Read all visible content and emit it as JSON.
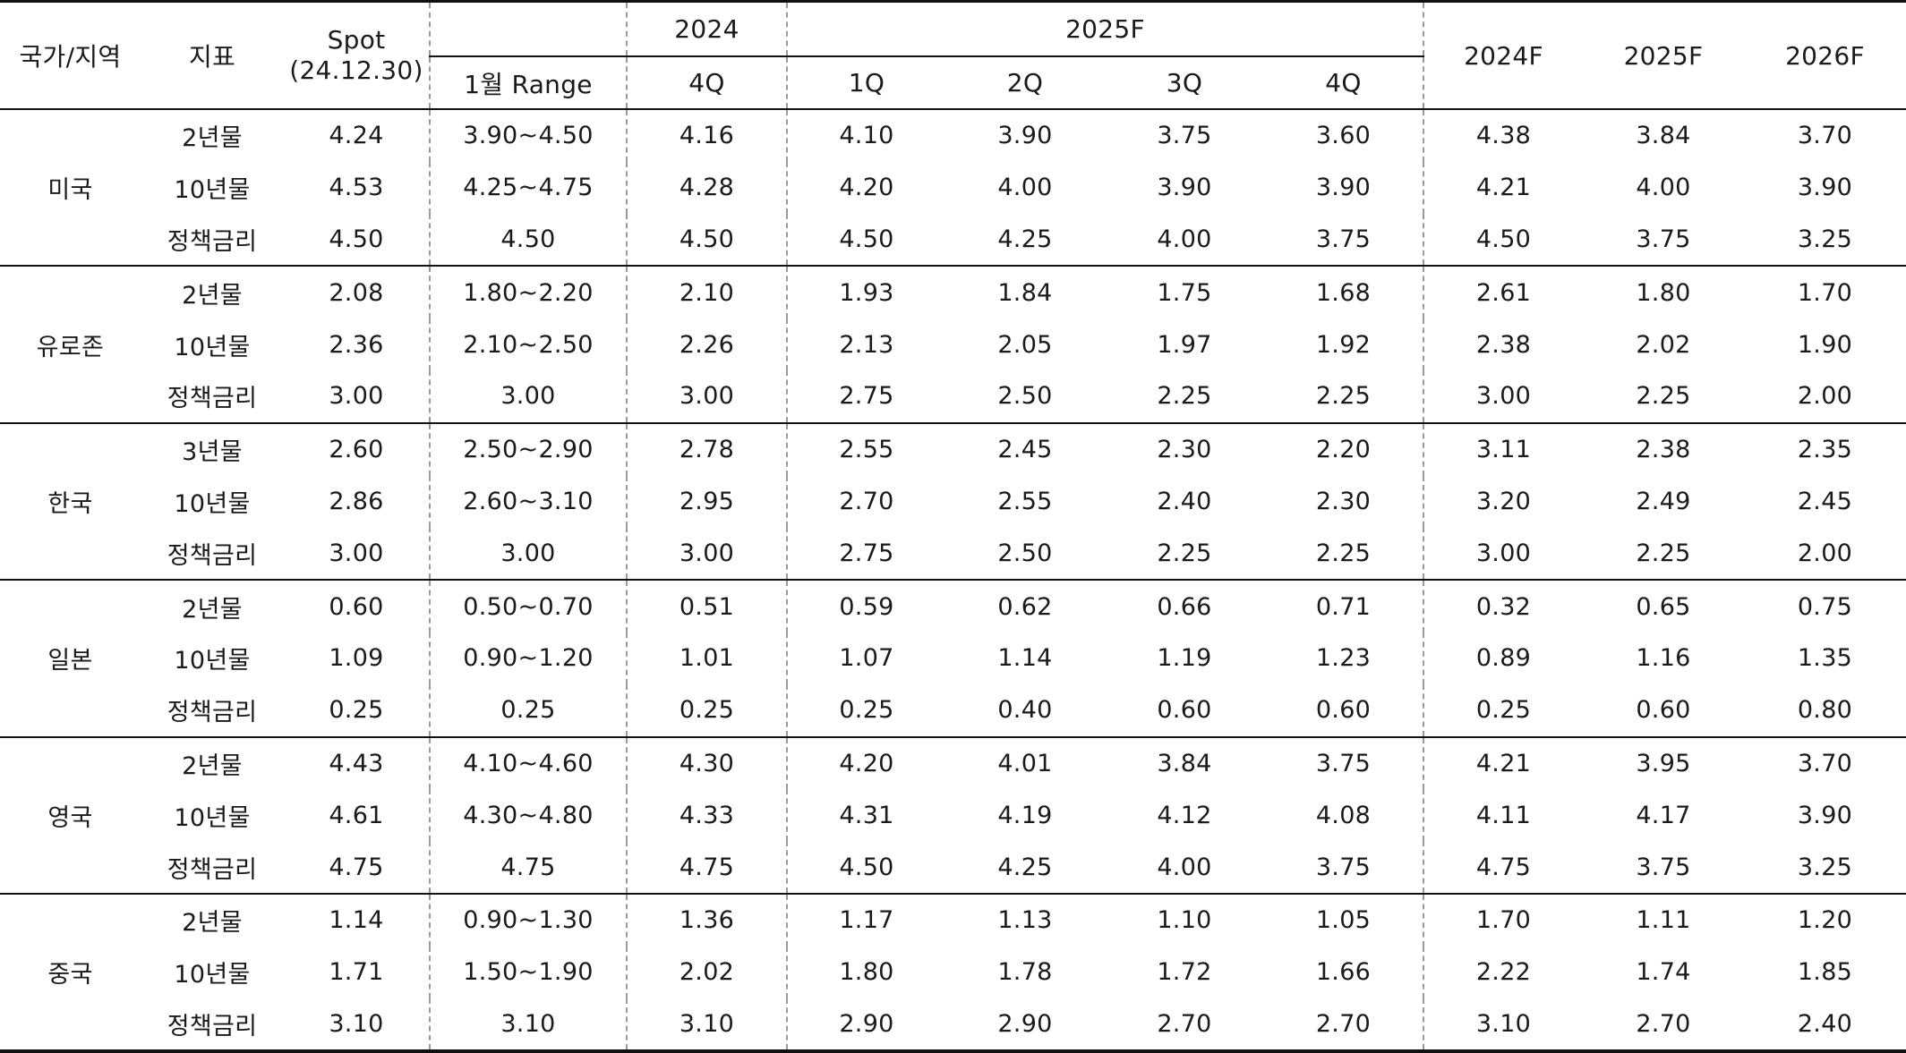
{
  "headers": {
    "country": "국가/지역",
    "indicator": "지표",
    "spot_line1": "Spot",
    "spot_line2": "(24.12.30)",
    "group_2024": "2024",
    "group_2025f": "2025F",
    "range": "1월 Range",
    "q4_2024": "4Q",
    "q1": "1Q",
    "q2": "2Q",
    "q3": "3Q",
    "q4": "4Q",
    "y2024f": "2024F",
    "y2025f": "2025F",
    "y2026f": "2026F"
  },
  "regions": [
    {
      "name": "미국",
      "rows": [
        {
          "indicator": "2년물",
          "spot": "4.24",
          "range": "3.90~4.50",
          "q4_2024": "4.16",
          "q1": "4.10",
          "q2": "3.90",
          "q3": "3.75",
          "q4": "3.60",
          "y2024f": "4.38",
          "y2025f": "3.84",
          "y2026f": "3.70"
        },
        {
          "indicator": "10년물",
          "spot": "4.53",
          "range": "4.25~4.75",
          "q4_2024": "4.28",
          "q1": "4.20",
          "q2": "4.00",
          "q3": "3.90",
          "q4": "3.90",
          "y2024f": "4.21",
          "y2025f": "4.00",
          "y2026f": "3.90"
        },
        {
          "indicator": "정책금리",
          "spot": "4.50",
          "range": "4.50",
          "q4_2024": "4.50",
          "q1": "4.50",
          "q2": "4.25",
          "q3": "4.00",
          "q4": "3.75",
          "y2024f": "4.50",
          "y2025f": "3.75",
          "y2026f": "3.25"
        }
      ]
    },
    {
      "name": "유로존",
      "rows": [
        {
          "indicator": "2년물",
          "spot": "2.08",
          "range": "1.80~2.20",
          "q4_2024": "2.10",
          "q1": "1.93",
          "q2": "1.84",
          "q3": "1.75",
          "q4": "1.68",
          "y2024f": "2.61",
          "y2025f": "1.80",
          "y2026f": "1.70"
        },
        {
          "indicator": "10년물",
          "spot": "2.36",
          "range": "2.10~2.50",
          "q4_2024": "2.26",
          "q1": "2.13",
          "q2": "2.05",
          "q3": "1.97",
          "q4": "1.92",
          "y2024f": "2.38",
          "y2025f": "2.02",
          "y2026f": "1.90"
        },
        {
          "indicator": "정책금리",
          "spot": "3.00",
          "range": "3.00",
          "q4_2024": "3.00",
          "q1": "2.75",
          "q2": "2.50",
          "q3": "2.25",
          "q4": "2.25",
          "y2024f": "3.00",
          "y2025f": "2.25",
          "y2026f": "2.00"
        }
      ]
    },
    {
      "name": "한국",
      "rows": [
        {
          "indicator": "3년물",
          "spot": "2.60",
          "range": "2.50~2.90",
          "q4_2024": "2.78",
          "q1": "2.55",
          "q2": "2.45",
          "q3": "2.30",
          "q4": "2.20",
          "y2024f": "3.11",
          "y2025f": "2.38",
          "y2026f": "2.35"
        },
        {
          "indicator": "10년물",
          "spot": "2.86",
          "range": "2.60~3.10",
          "q4_2024": "2.95",
          "q1": "2.70",
          "q2": "2.55",
          "q3": "2.40",
          "q4": "2.30",
          "y2024f": "3.20",
          "y2025f": "2.49",
          "y2026f": "2.45"
        },
        {
          "indicator": "정책금리",
          "spot": "3.00",
          "range": "3.00",
          "q4_2024": "3.00",
          "q1": "2.75",
          "q2": "2.50",
          "q3": "2.25",
          "q4": "2.25",
          "y2024f": "3.00",
          "y2025f": "2.25",
          "y2026f": "2.00"
        }
      ]
    },
    {
      "name": "일본",
      "rows": [
        {
          "indicator": "2년물",
          "spot": "0.60",
          "range": "0.50~0.70",
          "q4_2024": "0.51",
          "q1": "0.59",
          "q2": "0.62",
          "q3": "0.66",
          "q4": "0.71",
          "y2024f": "0.32",
          "y2025f": "0.65",
          "y2026f": "0.75"
        },
        {
          "indicator": "10년물",
          "spot": "1.09",
          "range": "0.90~1.20",
          "q4_2024": "1.01",
          "q1": "1.07",
          "q2": "1.14",
          "q3": "1.19",
          "q4": "1.23",
          "y2024f": "0.89",
          "y2025f": "1.16",
          "y2026f": "1.35"
        },
        {
          "indicator": "정책금리",
          "spot": "0.25",
          "range": "0.25",
          "q4_2024": "0.25",
          "q1": "0.25",
          "q2": "0.40",
          "q3": "0.60",
          "q4": "0.60",
          "y2024f": "0.25",
          "y2025f": "0.60",
          "y2026f": "0.80"
        }
      ]
    },
    {
      "name": "영국",
      "rows": [
        {
          "indicator": "2년물",
          "spot": "4.43",
          "range": "4.10~4.60",
          "q4_2024": "4.30",
          "q1": "4.20",
          "q2": "4.01",
          "q3": "3.84",
          "q4": "3.75",
          "y2024f": "4.21",
          "y2025f": "3.95",
          "y2026f": "3.70"
        },
        {
          "indicator": "10년물",
          "spot": "4.61",
          "range": "4.30~4.80",
          "q4_2024": "4.33",
          "q1": "4.31",
          "q2": "4.19",
          "q3": "4.12",
          "q4": "4.08",
          "y2024f": "4.11",
          "y2025f": "4.17",
          "y2026f": "3.90"
        },
        {
          "indicator": "정책금리",
          "spot": "4.75",
          "range": "4.75",
          "q4_2024": "4.75",
          "q1": "4.50",
          "q2": "4.25",
          "q3": "4.00",
          "q4": "3.75",
          "y2024f": "4.75",
          "y2025f": "3.75",
          "y2026f": "3.25"
        }
      ]
    },
    {
      "name": "중국",
      "rows": [
        {
          "indicator": "2년물",
          "spot": "1.14",
          "range": "0.90~1.30",
          "q4_2024": "1.36",
          "q1": "1.17",
          "q2": "1.13",
          "q3": "1.10",
          "q4": "1.05",
          "y2024f": "1.70",
          "y2025f": "1.11",
          "y2026f": "1.20"
        },
        {
          "indicator": "10년물",
          "spot": "1.71",
          "range": "1.50~1.90",
          "q4_2024": "2.02",
          "q1": "1.80",
          "q2": "1.78",
          "q3": "1.72",
          "q4": "1.66",
          "y2024f": "2.22",
          "y2025f": "1.74",
          "y2026f": "1.85"
        },
        {
          "indicator": "정책금리",
          "spot": "3.10",
          "range": "3.10",
          "q4_2024": "3.10",
          "q1": "2.90",
          "q2": "2.90",
          "q3": "2.70",
          "q4": "2.70",
          "y2024f": "3.10",
          "y2025f": "2.70",
          "y2026f": "2.40"
        }
      ]
    }
  ]
}
